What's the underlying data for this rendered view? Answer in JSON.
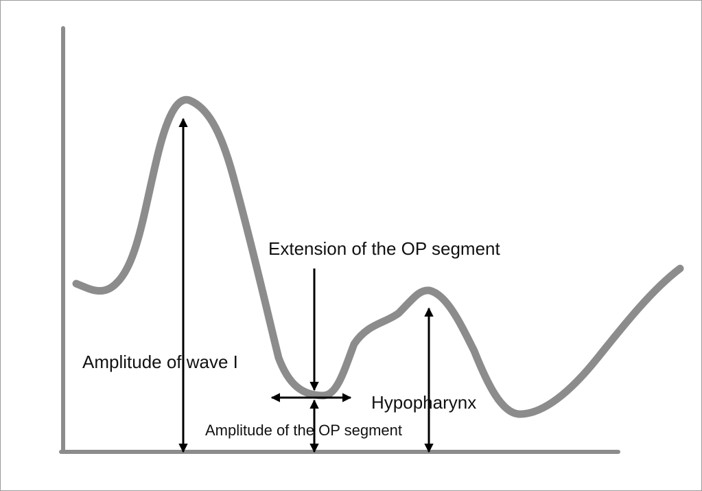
{
  "diagram": {
    "labels": {
      "extension": "Extension of the OP segment",
      "wave_amplitude": "Amplitude of wave I",
      "hypopharynx": "Hypopharynx",
      "op_amplitude": "Amplitude of the OP segment"
    },
    "colors": {
      "curve": "#8c8c8c",
      "axes": "#8c8c8c",
      "arrows": "#000000",
      "text": "#111111",
      "background": "#ffffff"
    }
  }
}
